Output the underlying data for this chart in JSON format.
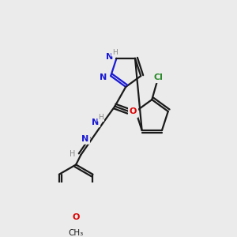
{
  "bg_color": "#ebebeb",
  "bond_color": "#1a1a1a",
  "bond_width": 1.6,
  "atom_colors": {
    "C": "#1a1a1a",
    "N": "#1a1ad4",
    "O": "#dd0000",
    "S": "#b8a000",
    "Cl": "#2a8a2a",
    "H": "#888888"
  },
  "font_size": 8.0,
  "fig_bg": "#ebebeb"
}
